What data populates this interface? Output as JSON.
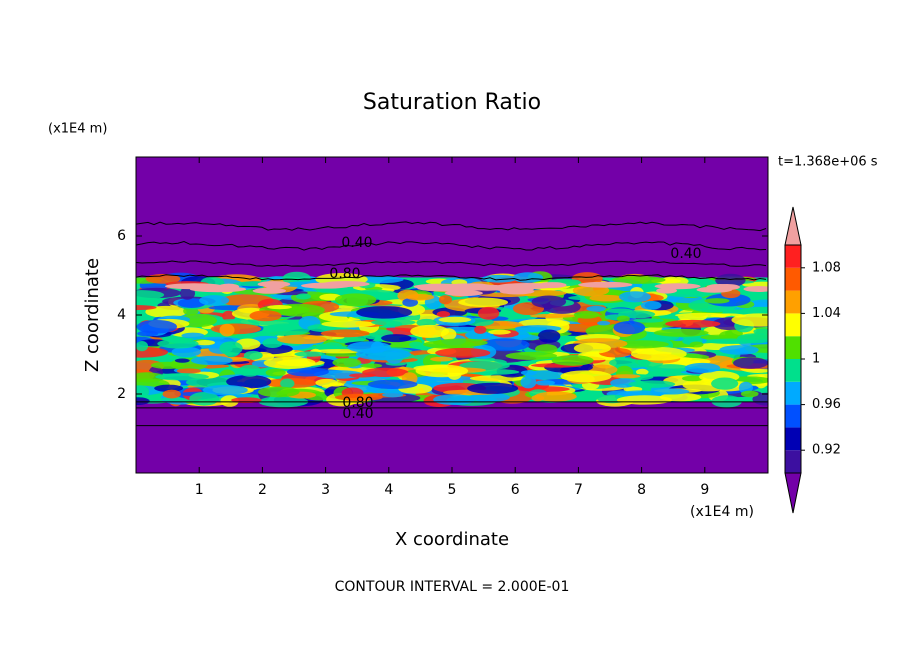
{
  "chart_data": {
    "type": "contour",
    "title": "Saturation Ratio",
    "xlabel": "X coordinate",
    "ylabel": "Z coordinate",
    "x_unit": "(x1E4 m)",
    "y_unit": "(x1E4 m)",
    "time_label": "t=1.368e+06 s",
    "footer": "CONTOUR INTERVAL = 2.000E-01",
    "xlim": [
      0,
      10
    ],
    "xticks": [
      1,
      2,
      3,
      4,
      5,
      6,
      7,
      8,
      9
    ],
    "ylim": [
      0,
      8
    ],
    "yticks": [
      2,
      4,
      6
    ],
    "colorbar": {
      "levels": [
        0.9,
        0.92,
        0.94,
        0.96,
        0.98,
        1,
        1.02,
        1.04,
        1.06,
        1.08,
        1.1
      ],
      "colors": [
        "#3c0fa0",
        "#0000b4",
        "#0050ff",
        "#00aaff",
        "#00e08c",
        "#50e000",
        "#ffff00",
        "#ffa000",
        "#ff5a00",
        "#ff2020"
      ],
      "under_color": "#7300a8",
      "over_color": "#f0a0a0",
      "ticks": [
        0.92,
        0.96,
        1,
        1.04,
        1.08
      ]
    },
    "contour_labels": [
      "0.40",
      "0.80",
      "0.40",
      "0.80",
      "0.40"
    ]
  }
}
